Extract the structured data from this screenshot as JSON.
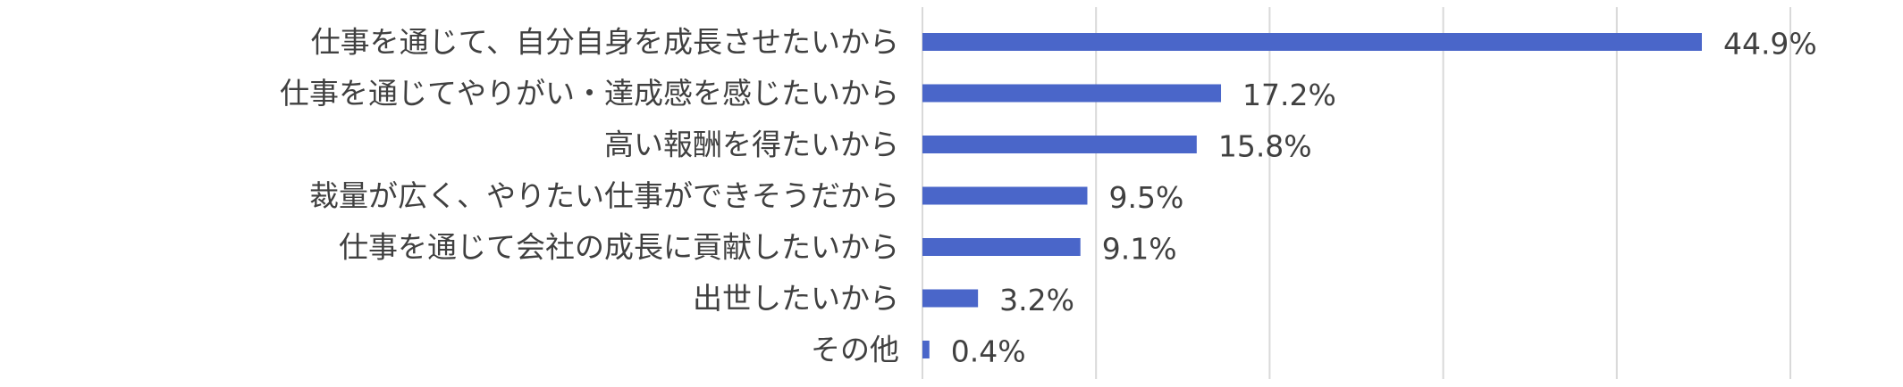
{
  "chart_data": {
    "type": "bar",
    "orientation": "horizontal",
    "categories": [
      "仕事を通じて、自分自身を成長させたいから",
      "仕事を通じてやりがい・達成感を感じたいから",
      "高い報酬を得たいから",
      "裁量が広く、やりたい仕事ができそうだから",
      "仕事を通じて会社の成長に貢献したいから",
      "出世したいから",
      "その他"
    ],
    "values": [
      44.9,
      17.2,
      15.8,
      9.5,
      9.1,
      3.2,
      0.4
    ],
    "value_labels": [
      "44.9%",
      "17.2%",
      "15.8%",
      "9.5%",
      "9.1%",
      "3.2%",
      "0.4%"
    ],
    "xlim": [
      0,
      50
    ],
    "grid": true,
    "bar_color": "#4A66C9",
    "grid_color": "#D9D9D9"
  }
}
